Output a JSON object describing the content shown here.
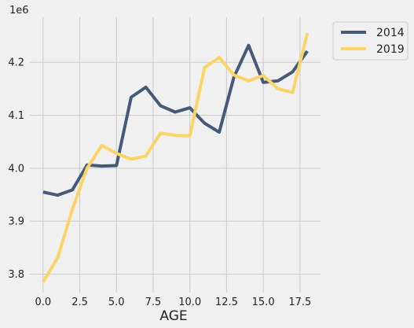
{
  "chart_data": {
    "type": "line",
    "title": "",
    "xlabel": "AGE",
    "ylabel": "",
    "y_offset_label": "1e6",
    "xlim": [
      -0.9,
      18.9
    ],
    "ylim": [
      3.765,
      4.285
    ],
    "x_ticks": [
      0.0,
      2.5,
      5.0,
      7.5,
      10.0,
      12.5,
      15.0,
      17.5
    ],
    "x_tick_labels": [
      "0.0",
      "2.5",
      "5.0",
      "7.5",
      "10.0",
      "12.5",
      "15.0",
      "17.5"
    ],
    "y_ticks": [
      3.8,
      3.9,
      4.0,
      4.1,
      4.2
    ],
    "y_tick_labels": [
      "3.8",
      "3.9",
      "4.0",
      "4.1",
      "4.2"
    ],
    "grid": true,
    "legend_position": "outside-top-right",
    "x": [
      0,
      1,
      2,
      3,
      4,
      5,
      6,
      7,
      8,
      9,
      10,
      11,
      12,
      13,
      14,
      15,
      16,
      17,
      18
    ],
    "series": [
      {
        "name": "2014",
        "color": "#455a78",
        "values": [
          3.955,
          3.949,
          3.959,
          4.006,
          4.004,
          4.005,
          4.134,
          4.153,
          4.118,
          4.106,
          4.114,
          4.085,
          4.068,
          4.172,
          4.232,
          4.162,
          4.165,
          4.182,
          4.221
        ]
      },
      {
        "name": "2019",
        "color": "#fad465",
        "values": [
          3.785,
          3.831,
          3.923,
          4.0,
          4.043,
          4.028,
          4.017,
          4.023,
          4.066,
          4.062,
          4.061,
          4.19,
          4.209,
          4.176,
          4.165,
          4.175,
          4.15,
          4.143,
          4.255
        ]
      }
    ]
  }
}
